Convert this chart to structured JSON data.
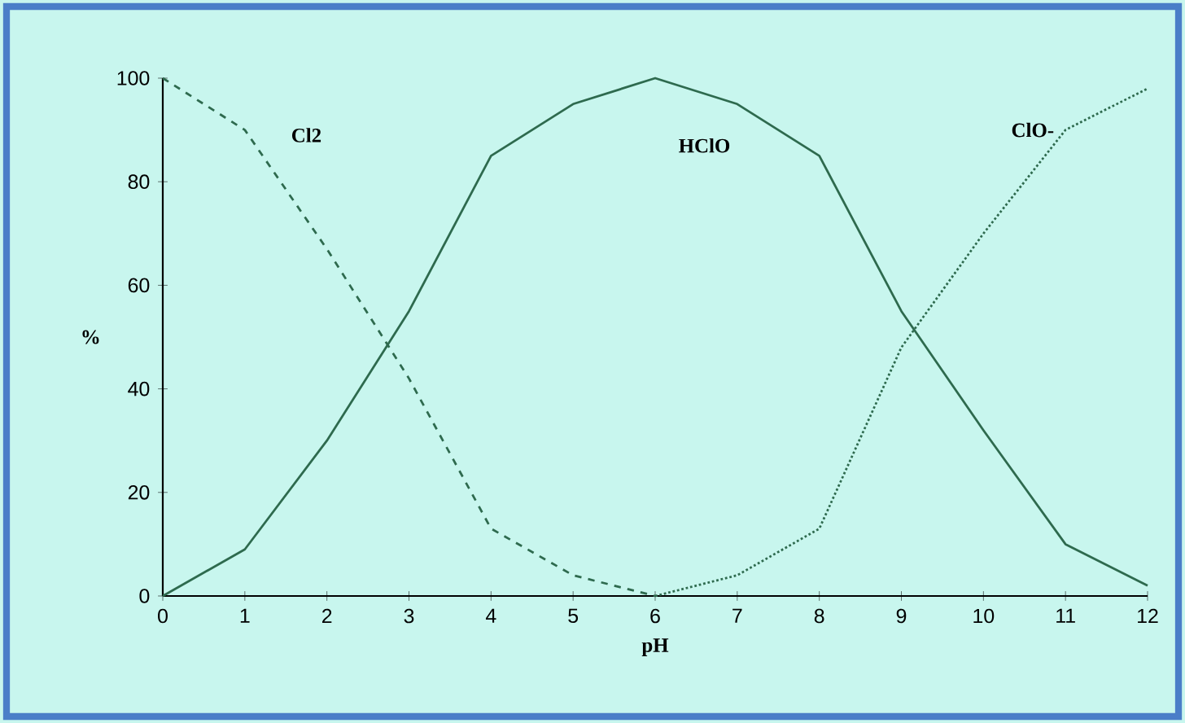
{
  "chart_data": {
    "type": "line",
    "xlabel": "pH",
    "ylabel": "%",
    "x": [
      0,
      1,
      2,
      3,
      4,
      5,
      6,
      7,
      8,
      9,
      10,
      11,
      12
    ],
    "series": [
      {
        "name": "Cl2",
        "color": "#2e6a4e",
        "line_style": "dashed",
        "values": [
          100,
          90,
          67,
          42,
          13,
          4,
          0,
          null,
          null,
          null,
          null,
          null,
          null
        ]
      },
      {
        "name": "HClO",
        "color": "#2e6a4e",
        "line_style": "solid",
        "values": [
          0,
          9,
          30,
          55,
          85,
          95,
          100,
          95,
          85,
          55,
          32,
          10,
          2
        ]
      },
      {
        "name": "ClO-",
        "color": "#2e6a4e",
        "line_style": "dotted",
        "values": [
          null,
          null,
          null,
          null,
          null,
          null,
          0,
          4,
          13,
          48,
          70,
          90,
          98
        ]
      }
    ],
    "xlim": [
      0,
      12
    ],
    "ylim": [
      0,
      100
    ],
    "xticks": [
      0,
      1,
      2,
      3,
      4,
      5,
      6,
      7,
      8,
      9,
      10,
      11,
      12
    ],
    "yticks": [
      0,
      20,
      40,
      60,
      80,
      100
    ],
    "grid": false,
    "legend": false,
    "marker": "none"
  }
}
